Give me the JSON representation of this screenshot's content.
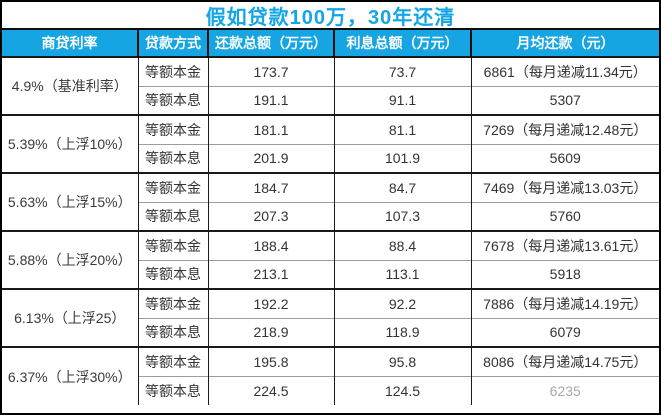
{
  "title": "假如贷款100万，30年还清",
  "colors": {
    "accent_cyan": "#14a5e2",
    "title_text": "#12a6e8",
    "header_text": "#ffffff",
    "body_text": "#333333",
    "border_dark": "#0c0c0c",
    "inner_divider_gray": "#9c9c9c",
    "faded_value": "#a8a8a8"
  },
  "table": {
    "headers": [
      "商贷利率",
      "贷款方式",
      "还款总额（万元）",
      "利息总额（万元）",
      "月均还款（元）"
    ],
    "groups": [
      {
        "rate": "4.9%（基准利率）",
        "rows": [
          {
            "method": "等额本金",
            "total": "173.7",
            "interest": "73.7",
            "monthly": "6861（每月递减11.34元）"
          },
          {
            "method": "等额本息",
            "total": "191.1",
            "interest": "91.1",
            "monthly": "5307"
          }
        ]
      },
      {
        "rate": "5.39%（上浮10%）",
        "rows": [
          {
            "method": "等额本金",
            "total": "181.1",
            "interest": "81.1",
            "monthly": "7269（每月递减12.48元）"
          },
          {
            "method": "等额本息",
            "total": "201.9",
            "interest": "101.9",
            "monthly": "5609"
          }
        ]
      },
      {
        "rate": "5.63%（上浮15%）",
        "rows": [
          {
            "method": "等额本金",
            "total": "184.7",
            "interest": "84.7",
            "monthly": "7469（每月递减13.03元）"
          },
          {
            "method": "等额本息",
            "total": "207.3",
            "interest": "107.3",
            "monthly": "5760"
          }
        ]
      },
      {
        "rate": "5.88%（上浮20%）",
        "rows": [
          {
            "method": "等额本金",
            "total": "188.4",
            "interest": "88.4",
            "monthly": "7678（每月递减13.61元）"
          },
          {
            "method": "等额本息",
            "total": "213.1",
            "interest": "113.1",
            "monthly": "5918"
          }
        ]
      },
      {
        "rate": "6.13%（上浮25）",
        "rows": [
          {
            "method": "等额本金",
            "total": "192.2",
            "interest": "92.2",
            "monthly": "7886（每月递减14.19元）"
          },
          {
            "method": "等额本息",
            "total": "218.9",
            "interest": "118.9",
            "monthly": "6079"
          }
        ]
      },
      {
        "rate": "6.37%（上浮30%）",
        "rows": [
          {
            "method": "等额本金",
            "total": "195.8",
            "interest": "95.8",
            "monthly": "8086（每月递减14.75元）"
          },
          {
            "method": "等额本息",
            "total": "224.5",
            "interest": "124.5",
            "monthly": "6235"
          }
        ]
      }
    ]
  },
  "chart_data": {
    "type": "table",
    "title": "假如贷款100万，30年还清",
    "columns": [
      "商贷利率",
      "贷款方式",
      "还款总额（万元）",
      "利息总额（万元）",
      "月均还款（元）"
    ],
    "rows": [
      [
        "4.9%（基准利率）",
        "等额本金",
        173.7,
        73.7,
        "6861（每月递减11.34元）"
      ],
      [
        "4.9%（基准利率）",
        "等额本息",
        191.1,
        91.1,
        "5307"
      ],
      [
        "5.39%（上浮10%）",
        "等额本金",
        181.1,
        81.1,
        "7269（每月递减12.48元）"
      ],
      [
        "5.39%（上浮10%）",
        "等额本息",
        201.9,
        101.9,
        "5609"
      ],
      [
        "5.63%（上浮15%）",
        "等额本金",
        184.7,
        84.7,
        "7469（每月递减13.03元）"
      ],
      [
        "5.63%（上浮15%）",
        "等额本息",
        207.3,
        107.3,
        "5760"
      ],
      [
        "5.88%（上浮20%）",
        "等额本金",
        188.4,
        88.4,
        "7678（每月递减13.61元）"
      ],
      [
        "5.88%（上浮20%）",
        "等额本息",
        213.1,
        113.1,
        "5918"
      ],
      [
        "6.13%（上浮25）",
        "等额本金",
        192.2,
        92.2,
        "7886（每月递减14.19元）"
      ],
      [
        "6.13%（上浮25）",
        "等额本息",
        218.9,
        118.9,
        "6079"
      ],
      [
        "6.37%（上浮30%）",
        "等额本金",
        195.8,
        95.8,
        "8086（每月递减14.75元）"
      ],
      [
        "6.37%（上浮30%）",
        "等额本息",
        224.5,
        124.5,
        "6235"
      ]
    ]
  }
}
